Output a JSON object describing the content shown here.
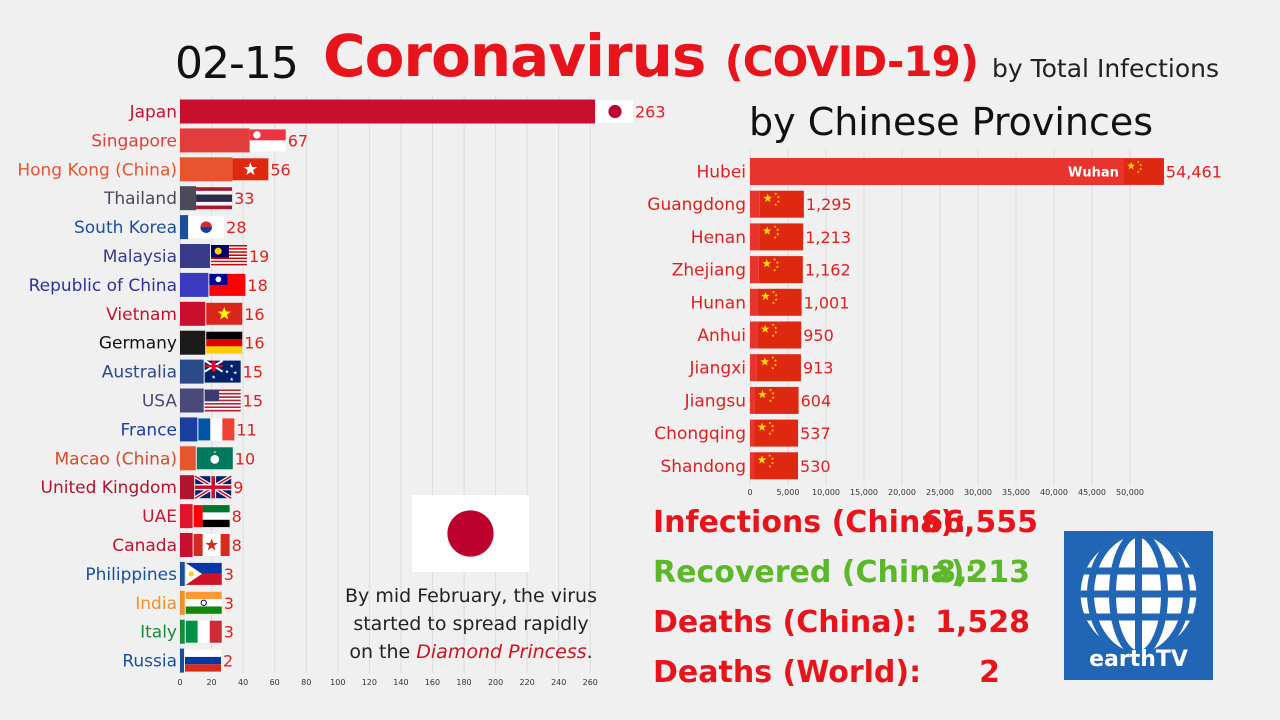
{
  "header": {
    "date": "02-15",
    "title": "Coronavirus",
    "title_sub": "(COVID-19)",
    "subtitle_right": "by Total Infections",
    "provinces_title": "by Chinese Provinces"
  },
  "chart_data": [
    {
      "type": "bar",
      "orientation": "horizontal",
      "categories": [
        "Japan",
        "Singapore",
        "Hong Kong (China)",
        "Thailand",
        "South Korea",
        "Malaysia",
        "Republic of China",
        "Vietnam",
        "Germany",
        "Australia",
        "USA",
        "France",
        "Macao (China)",
        "United Kingdom",
        "UAE",
        "Canada",
        "Philippines",
        "India",
        "Italy",
        "Russia"
      ],
      "values": [
        263,
        67,
        56,
        33,
        28,
        19,
        18,
        16,
        16,
        15,
        15,
        11,
        10,
        9,
        8,
        8,
        3,
        3,
        3,
        2
      ],
      "label_colors": [
        "#c8102e",
        "#e23d3d",
        "#e8542e",
        "#4a4a5a",
        "#1a4fa0",
        "#3a3a8a",
        "#2f2fa0",
        "#c8102e",
        "#111111",
        "#2a4a8a",
        "#4a4a7a",
        "#1a3fa0",
        "#d84a2a",
        "#b0142e",
        "#d0142e",
        "#c8102e",
        "#1a4fa0",
        "#f0902a",
        "#1a8a3a",
        "#1a4fa0"
      ],
      "bar_colors": [
        "#c8102e",
        "#e23d3d",
        "#e8542e",
        "#4a4a5a",
        "#1a4fa0",
        "#3a3a8a",
        "#3a3ac0",
        "#c8102e",
        "#1a1a1a",
        "#2a4a8a",
        "#4a4a7a",
        "#1a3fa0",
        "#e8542e",
        "#b0142e",
        "#e0142e",
        "#c8102e",
        "#1a4fa0",
        "#f0902a",
        "#1a8a3a",
        "#1a4fa0"
      ],
      "flags": [
        "japan",
        "singapore",
        "hongkong",
        "thailand",
        "southkorea",
        "malaysia",
        "taiwan",
        "vietnam",
        "germany",
        "australia",
        "usa",
        "france",
        "macao",
        "uk",
        "uae",
        "canada",
        "philippines",
        "india",
        "italy",
        "russia"
      ],
      "xticks": [
        0,
        20,
        40,
        60,
        80,
        100,
        120,
        140,
        160,
        180,
        200,
        220,
        240,
        260
      ],
      "xlim": [
        0,
        263
      ],
      "value_color": "#e02020"
    },
    {
      "type": "bar",
      "orientation": "horizontal",
      "categories": [
        "Hubei",
        "Guangdong",
        "Henan",
        "Zhejiang",
        "Hunan",
        "Anhui",
        "Jiangxi",
        "Jiangsu",
        "Chongqing",
        "Shandong"
      ],
      "values": [
        54461,
        1295,
        1213,
        1162,
        1001,
        950,
        913,
        604,
        537,
        530
      ],
      "value_labels": [
        "54,461",
        "1,295",
        "1,213",
        "1,162",
        "1,001",
        "950",
        "913",
        "604",
        "537",
        "530"
      ],
      "inner_label": "Wuhan",
      "xticks": [
        0,
        5000,
        10000,
        15000,
        20000,
        25000,
        30000,
        35000,
        40000,
        45000,
        50000
      ],
      "xtick_labels": [
        "0",
        "5,000",
        "10,000",
        "15,000",
        "20,000",
        "25,000",
        "30,000",
        "35,000",
        "40,000",
        "45,000",
        "50,000"
      ],
      "xlim": [
        0,
        54461
      ],
      "bar_color": "#e8342e",
      "label_color": "#e02020",
      "flags": [
        "china",
        "china",
        "china",
        "china",
        "china",
        "china",
        "china",
        "china",
        "china",
        "china"
      ]
    }
  ],
  "stats": [
    {
      "label": "Infections (China):",
      "value": "66,555",
      "color": "#e8141c"
    },
    {
      "label": "Recovered (China):",
      "value": "8,213",
      "color": "#5cb82a"
    },
    {
      "label": "Deaths (China):",
      "value": "1,528",
      "color": "#e8141c"
    },
    {
      "label": "Deaths (World):",
      "value": "2",
      "color": "#e8141c"
    }
  ],
  "caption": {
    "line1": "By mid February, the virus",
    "line2": "started to spread rapidly",
    "line3_prefix": "on the ",
    "line3_emph": "Diamond Princess",
    "line3_suffix": "."
  },
  "featured_flag": "japan",
  "logo": {
    "text": "earthTV",
    "icon": "globe-icon",
    "color": "#2166b4"
  }
}
